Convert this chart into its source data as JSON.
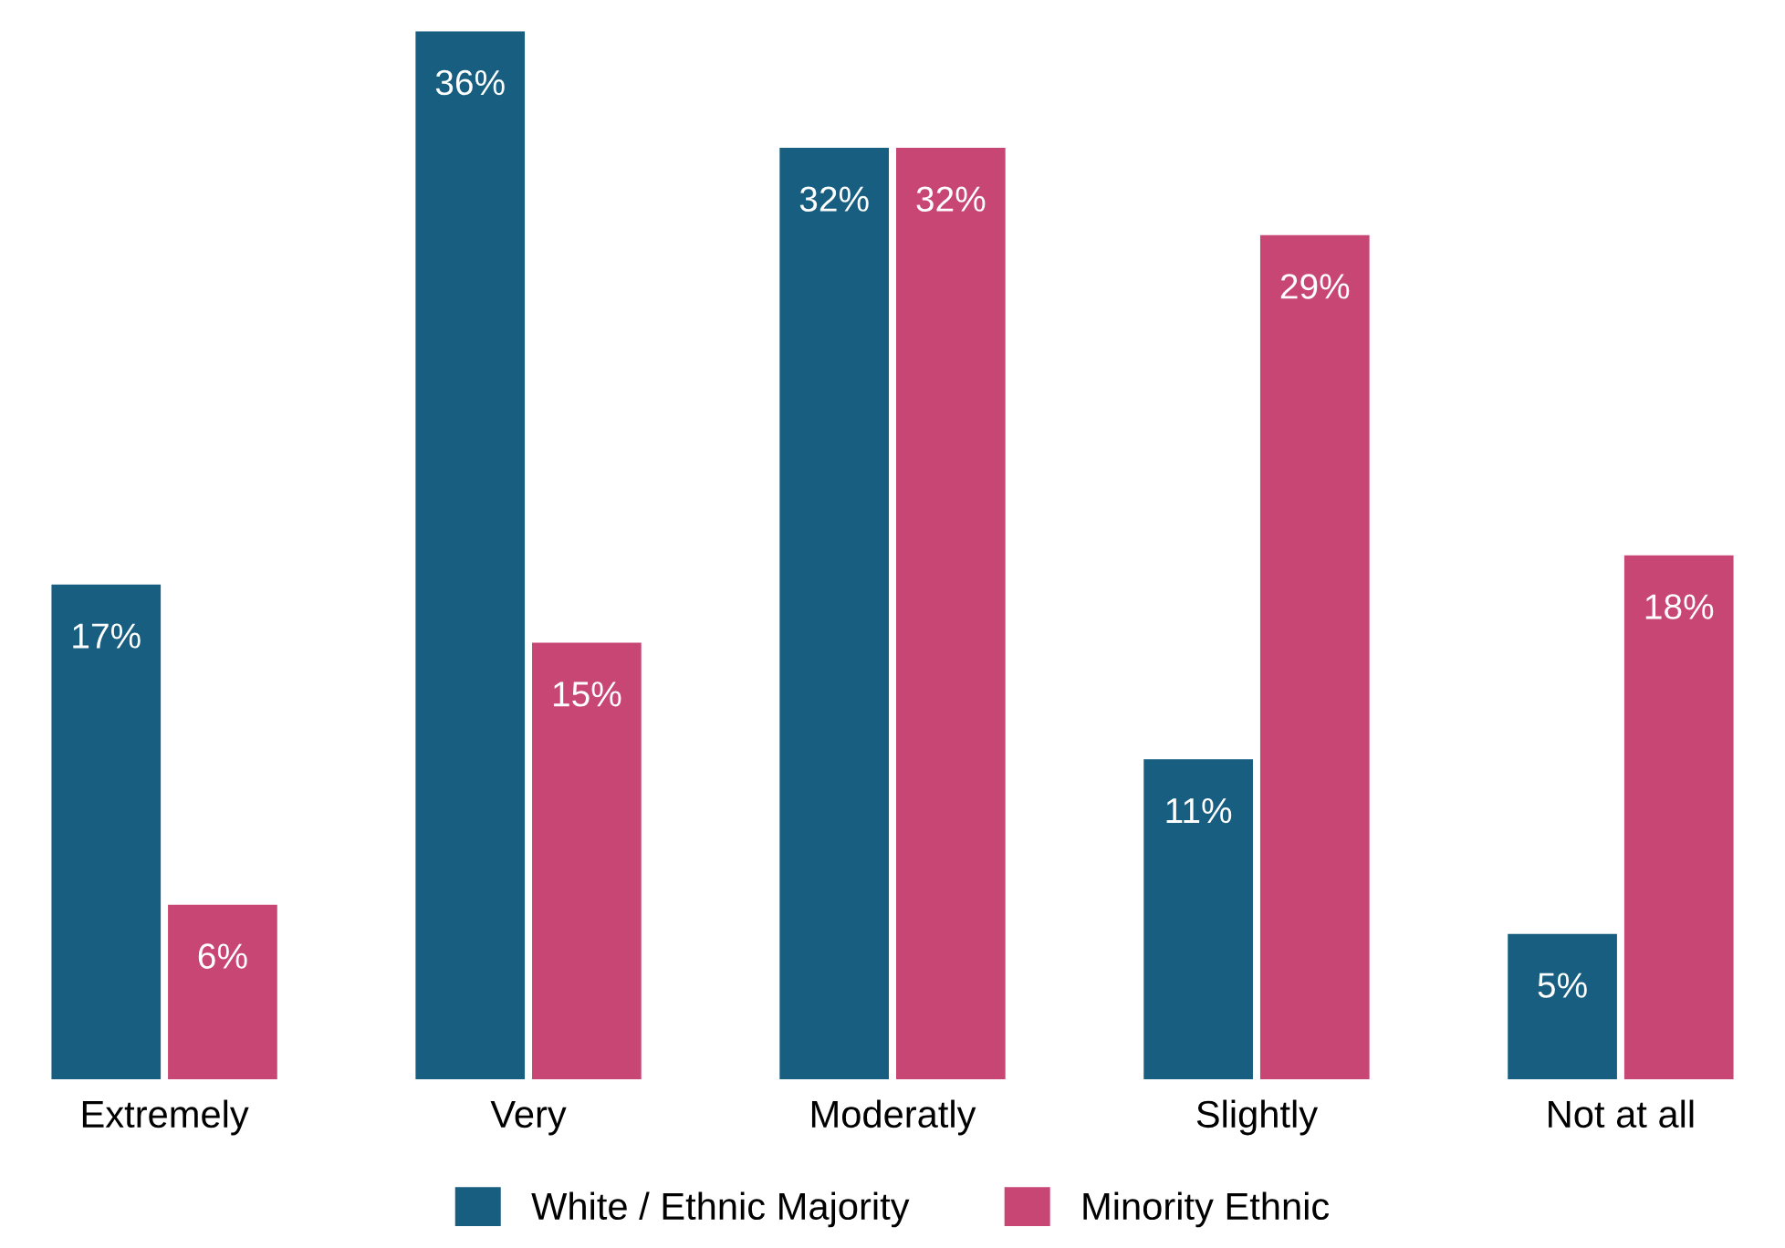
{
  "chart_data": {
    "type": "bar",
    "categories": [
      "Extremely",
      "Very",
      "Moderatly",
      "Slightly",
      "Not at all"
    ],
    "series": [
      {
        "name": "White / Ethnic Majority",
        "color": "#175e80",
        "values": [
          17,
          36,
          32,
          11,
          5
        ],
        "value_labels": [
          "17%",
          "36%",
          "32%",
          "11%",
          "5%"
        ]
      },
      {
        "name": "Minority Ethnic",
        "color": "#c84674",
        "values": [
          6,
          15,
          32,
          29,
          18
        ],
        "value_labels": [
          "6%",
          "15%",
          "32%",
          "29%",
          "18%"
        ]
      }
    ],
    "legend": "bottom",
    "grid": false
  }
}
